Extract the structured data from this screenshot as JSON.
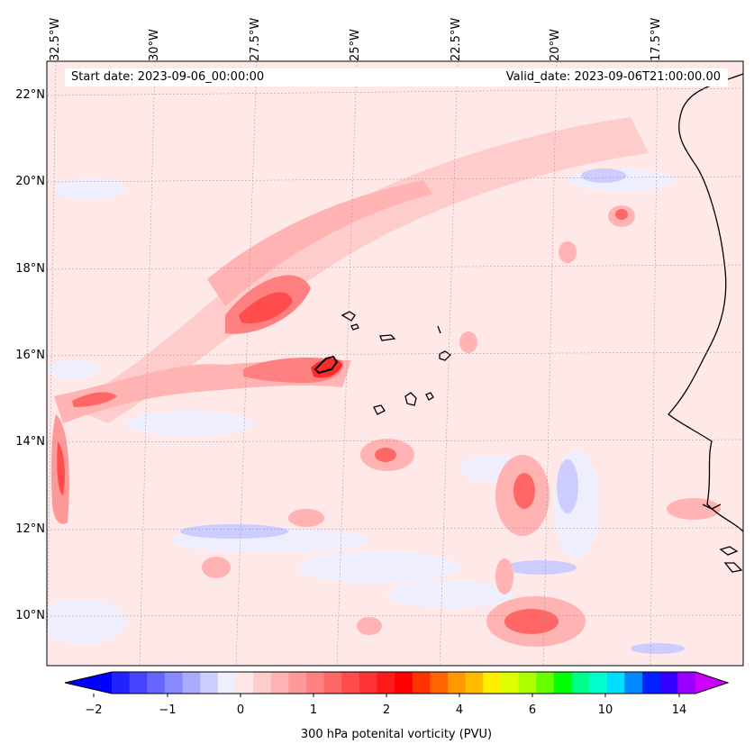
{
  "map": {
    "start_date": "Start date: 2023-09-06_00:00:00",
    "valid_date": "Valid_date: 2023-09-06T21:00:00.00",
    "field": "300 hPa potenital vorticity (PVU)",
    "lon_labels": [
      "32.5°W",
      "30°W",
      "27.5°W",
      "25°W",
      "22.5°W",
      "20°W",
      "17.5°W"
    ],
    "lat_labels": [
      "22°N",
      "20°N",
      "18°N",
      "16°N",
      "14°N",
      "12°N",
      "10°N"
    ],
    "colorbar": {
      "tick_labels": [
        "−2",
        "−1",
        "0",
        "1",
        "2",
        "4",
        "6",
        "10",
        "14"
      ],
      "colors": [
        "#0000ff",
        "#2222ff",
        "#4444ff",
        "#6666ff",
        "#8888ff",
        "#aaaaff",
        "#ccccff",
        "#eeeeff",
        "#ffe6e6",
        "#ffcccc",
        "#ffb3b3",
        "#ff9999",
        "#ff8080",
        "#ff6666",
        "#ff4d4d",
        "#ff3333",
        "#ff1a1a",
        "#ff0000",
        "#ff3300",
        "#ff6600",
        "#ff9900",
        "#ffbb00",
        "#ffee00",
        "#ddff00",
        "#aaff00",
        "#66ff00",
        "#00ff00",
        "#00ff88",
        "#00ffcc",
        "#00ddff",
        "#0088ff",
        "#0022ff",
        "#3300ff",
        "#9900ff",
        "#cc00ff"
      ]
    },
    "colors": {
      "background": "#ffe8e8",
      "coast": "#000000"
    }
  }
}
